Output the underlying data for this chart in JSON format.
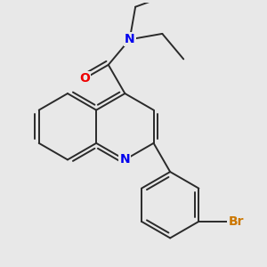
{
  "background_color": "#e8e8e8",
  "bond_color": "#2a2a2a",
  "atom_colors": {
    "N": "#0000ee",
    "O": "#ee0000",
    "Br": "#cc7700",
    "C": "#2a2a2a"
  },
  "figsize": [
    3.0,
    3.0
  ],
  "dpi": 100,
  "xlim": [
    -1.6,
    2.2
  ],
  "ylim": [
    -2.0,
    1.8
  ]
}
